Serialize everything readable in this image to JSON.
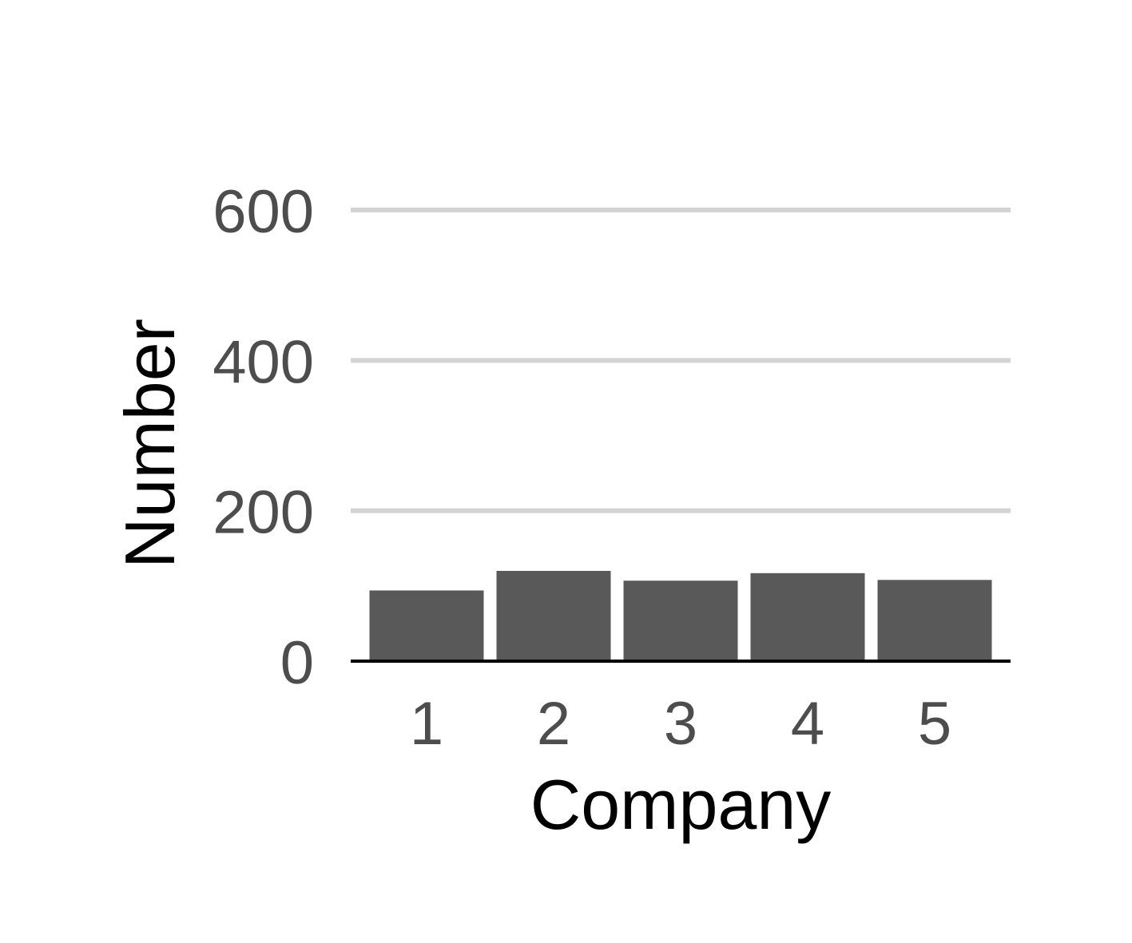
{
  "chart_data": {
    "type": "bar",
    "title": "",
    "xlabel": "Company",
    "ylabel": "Number",
    "categories": [
      "1",
      "2",
      "3",
      "4",
      "5"
    ],
    "values": [
      94,
      120,
      107,
      117,
      108
    ],
    "ylim": [
      0,
      600
    ],
    "yticks": [
      0,
      200,
      400,
      600
    ],
    "ytick_labels": [
      "0",
      "200",
      "400",
      "600"
    ],
    "grid": "horizontal-major",
    "legend": "none",
    "colors": {
      "bar": "#595959",
      "grid": "#d3d3d3",
      "axis_line": "#000000",
      "tick_text": "#4d4d4d",
      "title_text": "#000000"
    }
  }
}
